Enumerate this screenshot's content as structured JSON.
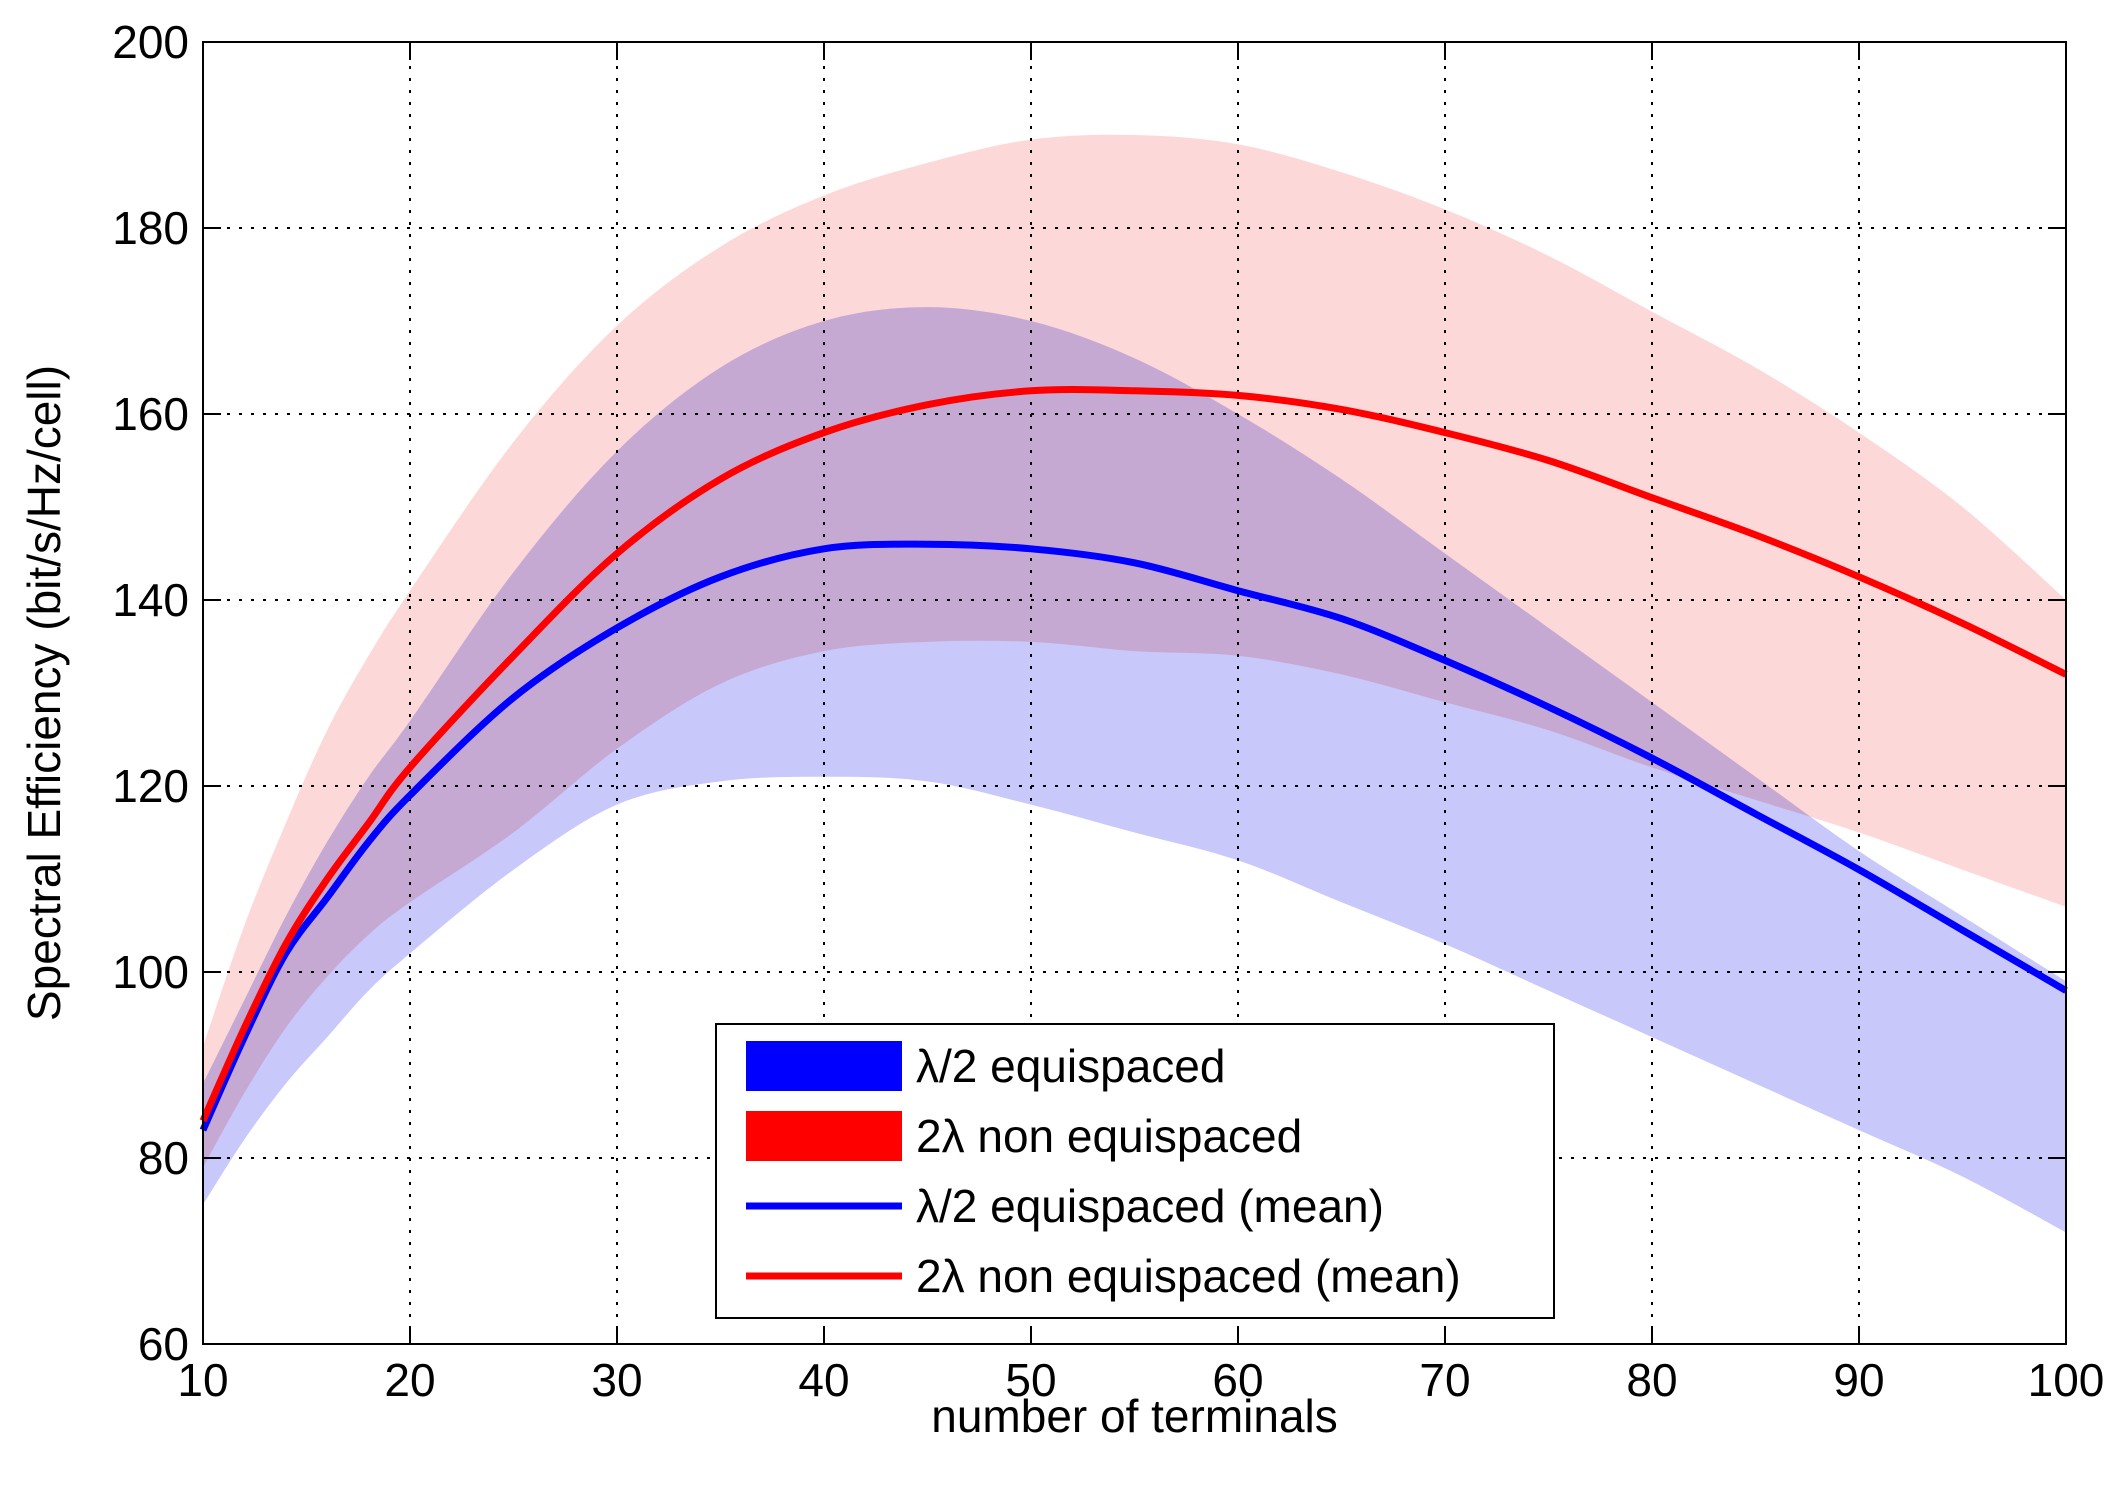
{
  "chart_data": {
    "type": "area",
    "title": "",
    "xlabel": "number of terminals",
    "ylabel": "Spectral Efficiency (bit/s/Hz/cell)",
    "xlim": [
      10,
      100
    ],
    "ylim": [
      60,
      200
    ],
    "xticks": [
      10,
      20,
      30,
      40,
      50,
      60,
      70,
      80,
      90,
      100
    ],
    "yticks": [
      60,
      80,
      100,
      120,
      140,
      160,
      180,
      200
    ],
    "xtick_labels": [
      "10",
      "20",
      "30",
      "40",
      "50",
      "60",
      "70",
      "80",
      "90",
      "100"
    ],
    "ytick_labels": [
      "60",
      "80",
      "100",
      "120",
      "140",
      "160",
      "180",
      "200"
    ],
    "grid": true,
    "legend_position": "bottom-center",
    "x": [
      10,
      12,
      14,
      16,
      18,
      20,
      25,
      30,
      35,
      40,
      45,
      50,
      55,
      60,
      65,
      70,
      75,
      80,
      85,
      90,
      95,
      100
    ],
    "bands": [
      {
        "name": "λ/2 equispaced",
        "color": "#0000ff",
        "fill": "#c8c8fa",
        "lower": [
          75,
          82,
          88,
          93,
          98,
          102,
          111,
          118,
          120.5,
          121,
          120.5,
          118,
          115,
          112,
          107.5,
          103,
          98,
          93,
          88,
          83,
          78,
          72
        ],
        "upper": [
          88,
          97,
          106,
          114,
          121,
          127,
          143,
          156,
          165,
          170,
          171.5,
          170,
          166,
          160,
          153,
          145,
          137,
          129,
          121,
          113,
          106,
          99
        ]
      },
      {
        "name": "2λ non equispaced",
        "color": "#ff0000",
        "fill": "#fcc8c8",
        "lower": [
          79,
          87,
          94,
          99.5,
          104,
          107.5,
          115,
          124,
          131,
          134.5,
          135.5,
          135.5,
          134.5,
          134,
          132,
          129,
          126,
          122,
          118.5,
          115,
          111,
          107
        ],
        "upper": [
          92,
          105,
          116,
          126,
          134,
          141,
          157,
          169.5,
          178,
          183.5,
          187,
          189.5,
          190,
          189,
          186,
          182,
          177,
          171,
          165,
          158,
          150,
          140
        ]
      }
    ],
    "series": [
      {
        "name": "λ/2 equispaced (mean)",
        "color": "#0000ff",
        "values": [
          83,
          93,
          102,
          108,
          114,
          119,
          129.5,
          137,
          142.5,
          145.5,
          146,
          145.5,
          144,
          141,
          138,
          133.5,
          128.5,
          123,
          117,
          111,
          104.5,
          98
        ]
      },
      {
        "name": "2λ non equispaced (mean)",
        "color": "#ff0000",
        "values": [
          84,
          94,
          103,
          110,
          116,
          122,
          134,
          145,
          153,
          158,
          161,
          162.5,
          162.5,
          162,
          160.5,
          158,
          155,
          151,
          147,
          142.5,
          137.5,
          132
        ]
      }
    ],
    "legend": [
      {
        "label": "λ/2 equispaced",
        "kind": "patch",
        "color": "#0000ff"
      },
      {
        "label": "2λ non equispaced",
        "kind": "patch",
        "color": "#ff0000"
      },
      {
        "label": "λ/2 equispaced (mean)",
        "kind": "line",
        "color": "#0000ff"
      },
      {
        "label": "2λ non equispaced (mean)",
        "kind": "line",
        "color": "#ff0000"
      }
    ]
  }
}
